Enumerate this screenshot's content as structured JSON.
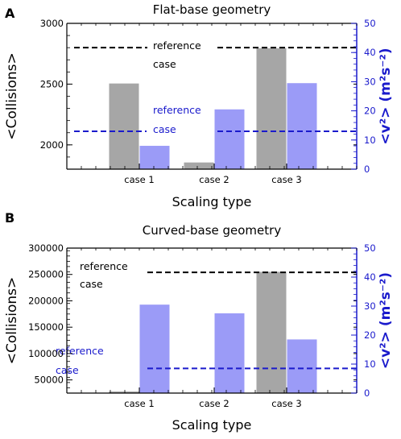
{
  "colors": {
    "collisions_bar": "#a6a6a6",
    "v2_bar": "#9b9bf7",
    "right_axis": "#1a1acc",
    "collisions_reference": "#000000",
    "v2_reference": "#1a1acc"
  },
  "chart_data": [
    {
      "type": "bar",
      "panel_label": "A",
      "title": "Flat-base geometry",
      "categories": [
        "case 1",
        "case 2",
        "case 3"
      ],
      "xlabel": "Scaling type",
      "ylabel": "<Collisions>",
      "y2label": "<v²> (m²s⁻²)",
      "ylim": [
        1800,
        3000
      ],
      "yticks": [
        2000,
        2500,
        3000
      ],
      "y2lim": [
        0,
        50
      ],
      "y2ticks": [
        0,
        10,
        20,
        30,
        40,
        50
      ],
      "series": [
        {
          "axis": "left",
          "values": [
            2505,
            1855,
            2795
          ]
        },
        {
          "axis": "right",
          "values": [
            8,
            20.5,
            29.5
          ]
        }
      ],
      "reference_lines": [
        {
          "axis": "left",
          "value": 2800,
          "label_line1": "reference",
          "label_line2": "case"
        },
        {
          "axis": "right",
          "value": 13,
          "label_line1": "reference",
          "label_line2": "case"
        }
      ]
    },
    {
      "type": "bar",
      "panel_label": "B",
      "title": "Curved-base geometry",
      "categories": [
        "case 1",
        "case 2",
        "case 3"
      ],
      "xlabel": "Scaling type",
      "ylabel": "<Collisions>",
      "y2label": "<v²> (m²s⁻²)",
      "ylim": [
        25000,
        300000
      ],
      "yticks": [
        50000,
        100000,
        150000,
        200000,
        250000,
        300000
      ],
      "y2lim": [
        0,
        50
      ],
      "y2ticks": [
        0,
        10,
        20,
        30,
        40,
        50
      ],
      "series": [
        {
          "axis": "left",
          "values": [
            28000,
            26000,
            255000
          ]
        },
        {
          "axis": "right",
          "values": [
            30.5,
            27.5,
            18.5
          ]
        }
      ],
      "reference_lines": [
        {
          "axis": "left",
          "value": 254000,
          "label_line1": "reference",
          "label_line2": "case"
        },
        {
          "axis": "right",
          "value": 8.5,
          "label_line1": "reference",
          "label_line2": "case"
        }
      ]
    }
  ]
}
